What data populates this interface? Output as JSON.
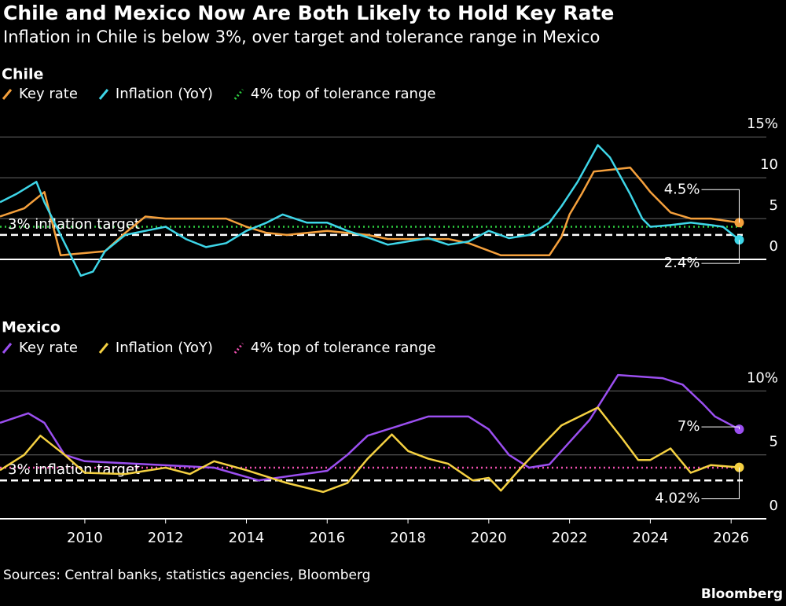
{
  "title": "Chile and Mexico Now Are Both Likely to Hold Key Rate",
  "subtitle": "Inflation in Chile is below 3%, over target and tolerance range in Mexico",
  "source": "Sources: Central banks, statistics agencies, Bloomberg",
  "brand": "Bloomberg",
  "chart_data": [
    {
      "type": "line",
      "title": "Chile",
      "xlim": [
        2007.9,
        2026.58
      ],
      "ylim": [
        -2.5,
        15.5
      ],
      "yticks": [
        {
          "value": 15,
          "label": "15%"
        },
        10,
        5,
        0
      ],
      "series": [
        {
          "name": "Key rate",
          "color": "#f5a03c",
          "end_label": "4.5%",
          "x": [
            2007.9,
            2008.5,
            2009.0,
            2009.4,
            2010.5,
            2011.0,
            2011.5,
            2012.0,
            2013.0,
            2013.5,
            2014.0,
            2014.5,
            2015.0,
            2016.0,
            2017.0,
            2017.5,
            2019.0,
            2019.5,
            2020.3,
            2021.5,
            2021.8,
            2022.0,
            2022.3,
            2022.6,
            2023.5,
            2023.8,
            2024.0,
            2024.5,
            2025.0,
            2025.5,
            2026.2
          ],
          "values": [
            5.25,
            6.25,
            8.25,
            0.5,
            1,
            3.25,
            5.25,
            5,
            5,
            5,
            4,
            3.25,
            3,
            3.5,
            3,
            2.5,
            2.5,
            2,
            0.5,
            0.5,
            2.75,
            5.5,
            8,
            10.75,
            11.25,
            9.5,
            8.25,
            5.75,
            5,
            5,
            4.5
          ]
        },
        {
          "name": "Inflation (YoY)",
          "color": "#3ed6e8",
          "end_label": "2.4%",
          "x": [
            2007.9,
            2008.3,
            2008.8,
            2009.0,
            2009.5,
            2009.9,
            2010.2,
            2010.5,
            2011.0,
            2011.5,
            2012.0,
            2012.5,
            2013.0,
            2013.5,
            2014.0,
            2014.5,
            2014.9,
            2015.5,
            2016.0,
            2016.5,
            2017.0,
            2017.5,
            2018.0,
            2018.5,
            2019.0,
            2019.5,
            2020.0,
            2020.5,
            2021.0,
            2021.5,
            2021.8,
            2022.2,
            2022.7,
            2023.0,
            2023.5,
            2023.8,
            2024.0,
            2024.5,
            2025.0,
            2025.5,
            2025.8,
            2026.2
          ],
          "values": [
            7,
            8,
            9.5,
            7,
            2,
            -2,
            -1.5,
            1,
            3,
            3.5,
            4,
            2.5,
            1.5,
            2,
            3.5,
            4.5,
            5.5,
            4.5,
            4.5,
            3.5,
            2.7,
            1.8,
            2.2,
            2.6,
            1.8,
            2.2,
            3.5,
            2.6,
            3,
            4.5,
            6.5,
            9.5,
            14,
            12.5,
            8,
            5,
            4,
            4.2,
            4.5,
            4.2,
            4,
            2.4
          ]
        }
      ],
      "hlines": [
        {
          "value": 4,
          "name": "4% top of tolerance range",
          "color": "#2ecc40",
          "style": "dotted"
        },
        {
          "value": 3,
          "label": "3% inflation target",
          "color": "#ffffff",
          "style": "dashed"
        }
      ]
    },
    {
      "type": "line",
      "title": "Mexico",
      "xlim": [
        2007.9,
        2026.58
      ],
      "ylim": [
        0,
        11.5
      ],
      "yticks": [
        {
          "value": 10,
          "label": "10%"
        },
        5,
        0
      ],
      "xticks": [
        2010,
        2012,
        2014,
        2016,
        2018,
        2020,
        2022,
        2024,
        2026
      ],
      "series": [
        {
          "name": "Key rate",
          "color": "#9b4ff0",
          "end_label": "7%",
          "x": [
            2007.9,
            2008.6,
            2009.0,
            2009.5,
            2010.0,
            2013.2,
            2014.3,
            2016.0,
            2016.5,
            2017.0,
            2017.5,
            2018.5,
            2019.5,
            2020.0,
            2020.5,
            2021.0,
            2021.5,
            2022.0,
            2022.5,
            2023.2,
            2024.3,
            2024.8,
            2025.3,
            2025.6,
            2026.2
          ],
          "values": [
            7.5,
            8.25,
            7.5,
            5,
            4.5,
            4,
            3,
            3.75,
            5,
            6.5,
            7,
            8,
            8,
            7,
            5,
            4,
            4.25,
            6,
            7.75,
            11.25,
            11,
            10.5,
            9,
            8,
            7
          ]
        },
        {
          "name": "Inflation (YoY)",
          "color": "#f5d142",
          "end_label": "4.02%",
          "x": [
            2007.9,
            2008.5,
            2008.9,
            2009.5,
            2010.0,
            2011.0,
            2012.0,
            2012.6,
            2013.2,
            2014.0,
            2015.0,
            2015.9,
            2016.5,
            2017.0,
            2017.6,
            2018.0,
            2018.5,
            2019.0,
            2019.6,
            2020.0,
            2020.3,
            2020.8,
            2021.4,
            2021.8,
            2022.7,
            2023.3,
            2023.7,
            2024.0,
            2024.5,
            2025.0,
            2025.5,
            2026.2
          ],
          "values": [
            3.8,
            5,
            6.5,
            5,
            3.6,
            3.5,
            4,
            3.5,
            4.5,
            3.8,
            2.8,
            2.1,
            2.8,
            4.7,
            6.6,
            5.3,
            4.7,
            4.3,
            3,
            3.2,
            2.2,
            4,
            6,
            7.3,
            8.7,
            6.3,
            4.6,
            4.6,
            5.5,
            3.6,
            4.2,
            4.02
          ]
        }
      ],
      "hlines": [
        {
          "value": 4,
          "name": "4% top of tolerance range",
          "color": "#f050b0",
          "style": "dotted"
        },
        {
          "value": 3,
          "label": "3% inflation target",
          "color": "#ffffff",
          "style": "dashed"
        }
      ]
    }
  ]
}
